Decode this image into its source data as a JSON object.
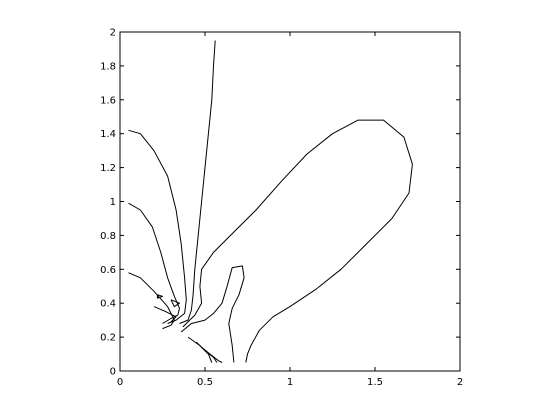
{
  "chart_data": {
    "type": "line",
    "title": "",
    "xlabel": "",
    "ylabel": "",
    "xlim": [
      0,
      2
    ],
    "ylim": [
      0,
      2
    ],
    "grid": false,
    "legend": "none",
    "line_color": "#000000",
    "xticks": [
      {
        "value": 0,
        "label": "0"
      },
      {
        "value": 0.5,
        "label": "0.5"
      },
      {
        "value": 1,
        "label": "1"
      },
      {
        "value": 1.5,
        "label": "1.5"
      },
      {
        "value": 2,
        "label": "2"
      }
    ],
    "yticks": [
      {
        "value": 0,
        "label": "0"
      },
      {
        "value": 0.2,
        "label": "0.2"
      },
      {
        "value": 0.4,
        "label": "0.4"
      },
      {
        "value": 0.6,
        "label": "0.6"
      },
      {
        "value": 0.8,
        "label": "0.8"
      },
      {
        "value": 1,
        "label": "1"
      },
      {
        "value": 1.2,
        "label": "1.2"
      },
      {
        "value": 1.4,
        "label": "1.4"
      },
      {
        "value": 1.6,
        "label": "1.6"
      },
      {
        "value": 1.8,
        "label": "1.8"
      },
      {
        "value": 2,
        "label": "2"
      }
    ],
    "series": [
      {
        "points": [
          [
            0.56,
            1.95
          ],
          [
            0.55,
            1.8
          ],
          [
            0.54,
            1.6
          ],
          [
            0.52,
            1.4
          ],
          [
            0.5,
            1.2
          ],
          [
            0.48,
            1.0
          ],
          [
            0.46,
            0.8
          ],
          [
            0.44,
            0.6
          ],
          [
            0.43,
            0.45
          ],
          [
            0.42,
            0.36
          ],
          [
            0.4,
            0.3
          ],
          [
            0.35,
            0.28
          ]
        ]
      },
      {
        "points": [
          [
            0.05,
            1.42
          ],
          [
            0.12,
            1.4
          ],
          [
            0.2,
            1.3
          ],
          [
            0.28,
            1.15
          ],
          [
            0.33,
            0.95
          ],
          [
            0.36,
            0.75
          ],
          [
            0.38,
            0.55
          ],
          [
            0.39,
            0.42
          ],
          [
            0.38,
            0.34
          ],
          [
            0.33,
            0.3
          ],
          [
            0.28,
            0.28
          ]
        ]
      },
      {
        "points": [
          [
            0.05,
            0.99
          ],
          [
            0.12,
            0.95
          ],
          [
            0.19,
            0.85
          ],
          [
            0.24,
            0.7
          ],
          [
            0.28,
            0.55
          ],
          [
            0.32,
            0.44
          ],
          [
            0.35,
            0.37
          ],
          [
            0.34,
            0.33
          ],
          [
            0.3,
            0.31
          ],
          [
            0.25,
            0.28
          ]
        ]
      },
      {
        "points": [
          [
            0.05,
            0.58
          ],
          [
            0.12,
            0.55
          ],
          [
            0.2,
            0.47
          ],
          [
            0.28,
            0.38
          ],
          [
            0.32,
            0.3
          ],
          [
            0.3,
            0.27
          ],
          [
            0.25,
            0.25
          ]
        ]
      },
      {
        "points": [
          [
            0.22,
            0.45
          ],
          [
            0.25,
            0.44
          ],
          [
            0.22,
            0.43
          ],
          [
            0.22,
            0.45
          ]
        ]
      },
      {
        "points": [
          [
            0.3,
            0.42
          ],
          [
            0.35,
            0.4
          ],
          [
            0.32,
            0.38
          ],
          [
            0.3,
            0.42
          ]
        ]
      },
      {
        "points": [
          [
            0.2,
            0.38
          ],
          [
            0.27,
            0.35
          ],
          [
            0.33,
            0.32
          ],
          [
            0.3,
            0.29
          ]
        ]
      },
      {
        "points": [
          [
            0.4,
            0.2
          ],
          [
            0.47,
            0.15
          ],
          [
            0.52,
            0.1
          ],
          [
            0.54,
            0.05
          ]
        ]
      },
      {
        "points": [
          [
            0.45,
            0.17
          ],
          [
            0.5,
            0.12
          ],
          [
            0.55,
            0.08
          ],
          [
            0.57,
            0.05
          ]
        ]
      },
      {
        "points": [
          [
            0.48,
            0.14
          ],
          [
            0.53,
            0.1
          ],
          [
            0.58,
            0.06
          ],
          [
            0.6,
            0.05
          ]
        ]
      },
      {
        "points": [
          [
            0.36,
            0.23
          ],
          [
            0.42,
            0.28
          ],
          [
            0.5,
            0.3
          ],
          [
            0.55,
            0.34
          ],
          [
            0.6,
            0.4
          ],
          [
            0.63,
            0.5
          ],
          [
            0.66,
            0.61
          ],
          [
            0.72,
            0.62
          ],
          [
            0.73,
            0.55
          ],
          [
            0.7,
            0.45
          ],
          [
            0.66,
            0.37
          ],
          [
            0.64,
            0.28
          ],
          [
            0.66,
            0.15
          ],
          [
            0.67,
            0.05
          ]
        ]
      },
      {
        "points": [
          [
            0.37,
            0.26
          ],
          [
            0.44,
            0.33
          ],
          [
            0.48,
            0.4
          ],
          [
            0.47,
            0.5
          ],
          [
            0.48,
            0.6
          ],
          [
            0.55,
            0.7
          ],
          [
            0.65,
            0.8
          ],
          [
            0.8,
            0.95
          ],
          [
            0.95,
            1.12
          ],
          [
            1.1,
            1.28
          ],
          [
            1.25,
            1.4
          ],
          [
            1.4,
            1.48
          ],
          [
            1.55,
            1.48
          ],
          [
            1.67,
            1.38
          ],
          [
            1.72,
            1.22
          ],
          [
            1.7,
            1.05
          ],
          [
            1.6,
            0.9
          ],
          [
            1.45,
            0.75
          ],
          [
            1.3,
            0.6
          ],
          [
            1.15,
            0.48
          ],
          [
            1.0,
            0.38
          ],
          [
            0.9,
            0.32
          ],
          [
            0.82,
            0.24
          ],
          [
            0.77,
            0.15
          ],
          [
            0.75,
            0.1
          ],
          [
            0.74,
            0.05
          ]
        ]
      }
    ]
  }
}
